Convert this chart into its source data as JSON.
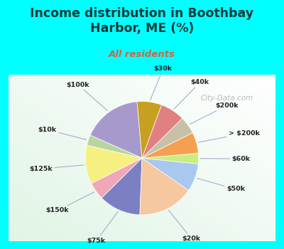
{
  "title": "Income distribution in Boothbay\nHarbor, ME (%)",
  "subtitle": "All residents",
  "title_color": "#1a3a3a",
  "subtitle_color": "#cc6644",
  "bg_cyan": "#00ffff",
  "bg_chart_color": "#e8f5ee",
  "labels": [
    "$100k",
    "$10k",
    "$125k",
    "$150k",
    "$75k",
    "$20k",
    "$50k",
    "$60k",
    "> $200k",
    "$200k",
    "$40k",
    "$30k"
  ],
  "values": [
    17,
    3,
    11,
    5,
    12,
    16,
    8,
    3,
    6,
    5,
    7,
    7
  ],
  "colors": [
    "#a899cc",
    "#b8d4a0",
    "#f5f080",
    "#f0a8b8",
    "#7b7fc4",
    "#f5c8a0",
    "#a8c8f0",
    "#c8ee80",
    "#f5a050",
    "#c8c0a8",
    "#e08080",
    "#c8a020"
  ],
  "startangle": 95,
  "watermark": "City-Data.com",
  "figsize": [
    4.0,
    3.5
  ],
  "dpi": 100,
  "title_fontsize": 12.5,
  "subtitle_fontsize": 9.5
}
